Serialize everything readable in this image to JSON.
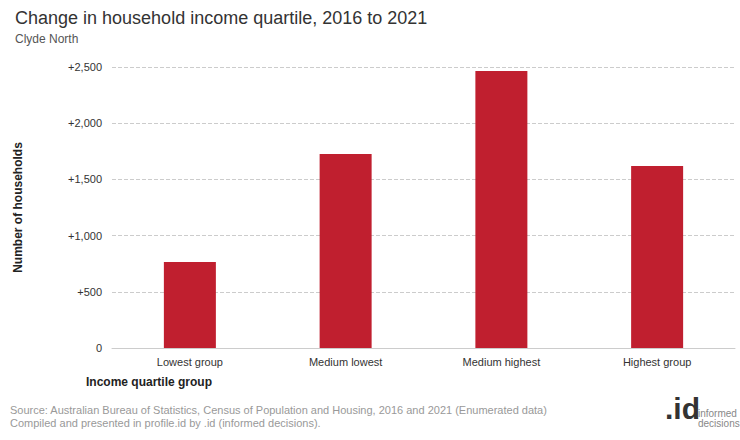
{
  "chart_data": {
    "type": "bar",
    "title": "Change in household income quartile, 2016 to 2021",
    "subtitle": "Clyde North",
    "x_label": "Income quartile group",
    "y_label": "Number of households",
    "categories": [
      "Lowest group",
      "Medium lowest",
      "Medium highest",
      "Highest group"
    ],
    "values": [
      765,
      1725,
      2465,
      1620
    ],
    "color": "#c01f2f",
    "ylim": [
      0,
      2500
    ],
    "yticks": [
      0,
      {
        "value": 500,
        "label": "+500"
      },
      {
        "value": 1000,
        "label": "+1,000"
      },
      {
        "value": 1500,
        "label": "+1,500"
      },
      {
        "value": 2000,
        "label": "+2,000"
      },
      {
        "value": 2500,
        "label": "+2,500"
      }
    ],
    "grid": true,
    "source": [
      "Source: Australian Bureau of Statistics, Census of Population and Housing, 2016 and 2021 (Enumerated data)",
      "Compiled and presented in profile.id by .id (informed decisions)."
    ],
    "logo": ".id",
    "logo_text": [
      "informed",
      "decisions"
    ]
  }
}
